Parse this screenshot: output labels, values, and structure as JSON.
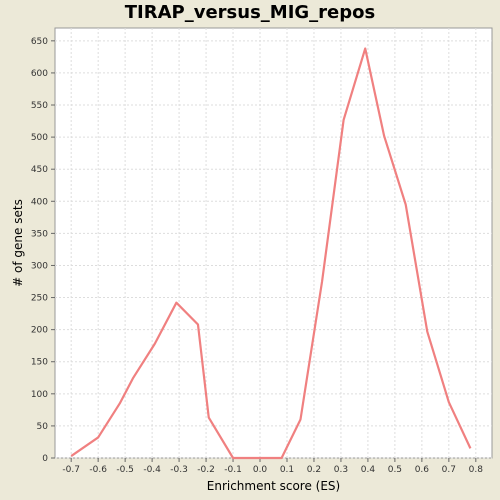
{
  "chart_data": {
    "type": "line",
    "title": "TIRAP_versus_MIG_repos",
    "xlabel": "Enrichment score (ES)",
    "ylabel": "# of gene sets",
    "xlim": [
      -0.76,
      0.86
    ],
    "ylim": [
      0,
      670
    ],
    "x_ticks": [
      -0.7,
      -0.6,
      -0.5,
      -0.4,
      -0.3,
      -0.2,
      -0.1,
      0.0,
      0.1,
      0.2,
      0.3,
      0.4,
      0.5,
      0.6,
      0.7,
      0.8
    ],
    "x_tick_labels": [
      "-0.7",
      "-0.6",
      "-0.5",
      "-0.4",
      "-0.3",
      "-0.2",
      "-0.1",
      "0.0",
      "0.1",
      "0.2",
      "0.3",
      "0.4",
      "0.5",
      "0.6",
      "0.7",
      "0.8"
    ],
    "y_ticks": [
      0,
      50,
      100,
      150,
      200,
      250,
      300,
      350,
      400,
      450,
      500,
      550,
      600,
      650
    ],
    "grid": true,
    "series": [
      {
        "color": "#F08080",
        "x": [
          -0.7,
          -0.6,
          -0.52,
          -0.47,
          -0.39,
          -0.31,
          -0.23,
          -0.19,
          -0.1,
          0.0,
          0.08,
          0.15,
          0.23,
          0.31,
          0.39,
          0.46,
          0.54,
          0.62,
          0.7,
          0.78
        ],
        "y": [
          3,
          32,
          85,
          125,
          178,
          242,
          208,
          63,
          0,
          0,
          0,
          60,
          275,
          527,
          638,
          502,
          395,
          197,
          87,
          15
        ]
      }
    ]
  }
}
